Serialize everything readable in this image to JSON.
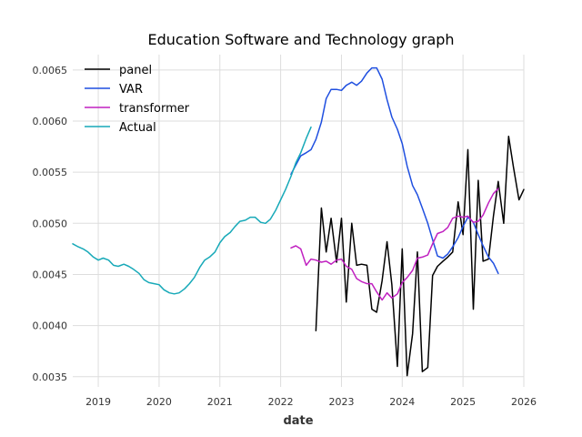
{
  "chart_data": {
    "type": "line",
    "title": "Education Software and Technology graph",
    "xlabel": "date",
    "ylabel": "",
    "x_tick_labels": [
      "2019",
      "2020",
      "2021",
      "2022",
      "2023",
      "2024",
      "2025",
      "2026"
    ],
    "y_tick_labels": [
      "0.0035",
      "0.0040",
      "0.0045",
      "0.0050",
      "0.0055",
      "0.0060",
      "0.0065"
    ],
    "xlim": [
      2018.58,
      2026.0
    ],
    "ylim": [
      0.0034,
      0.00665
    ],
    "grid": true,
    "legend_position": "top-left",
    "series": [
      {
        "name": "panel",
        "color": "#000000",
        "x": [
          2022.58,
          2022.67,
          2022.75,
          2022.83,
          2022.92,
          2023.0,
          2023.08,
          2023.17,
          2023.25,
          2023.33,
          2023.42,
          2023.5,
          2023.58,
          2023.67,
          2023.75,
          2023.83,
          2023.92,
          2024.0,
          2024.08,
          2024.17,
          2024.25,
          2024.33,
          2024.42,
          2024.5,
          2024.58,
          2024.67,
          2024.75,
          2024.83,
          2024.92,
          2025.0,
          2025.08,
          2025.17,
          2025.25,
          2025.33,
          2025.42,
          2025.5,
          2025.58,
          2025.67,
          2025.75,
          2025.83,
          2025.92,
          2026.0
        ],
        "values": [
          0.00395,
          0.00515,
          0.00472,
          0.00505,
          0.00462,
          0.00505,
          0.00423,
          0.005,
          0.00459,
          0.0046,
          0.00459,
          0.00416,
          0.00413,
          0.00444,
          0.00482,
          0.0044,
          0.0036,
          0.00475,
          0.00351,
          0.00392,
          0.00472,
          0.00355,
          0.00359,
          0.00449,
          0.00458,
          0.00463,
          0.00467,
          0.00472,
          0.00521,
          0.00489,
          0.00572,
          0.00416,
          0.00542,
          0.00463,
          0.00465,
          0.00507,
          0.00541,
          0.005,
          0.00585,
          0.00555,
          0.00523,
          0.00533
        ]
      },
      {
        "name": "VAR",
        "color": "#1f4fe0",
        "x": [
          2022.17,
          2022.25,
          2022.33,
          2022.42,
          2022.5,
          2022.58,
          2022.67,
          2022.75,
          2022.83,
          2022.92,
          2023.0,
          2023.08,
          2023.17,
          2023.25,
          2023.33,
          2023.42,
          2023.5,
          2023.58,
          2023.67,
          2023.75,
          2023.83,
          2023.92,
          2024.0,
          2024.08,
          2024.17,
          2024.25,
          2024.33,
          2024.42,
          2024.5,
          2024.58,
          2024.67,
          2024.75,
          2024.83,
          2024.92,
          2025.0,
          2025.08,
          2025.17,
          2025.25,
          2025.33,
          2025.42,
          2025.5,
          2025.58
        ],
        "values": [
          0.00548,
          0.00557,
          0.00566,
          0.00569,
          0.00572,
          0.00582,
          0.00599,
          0.00622,
          0.00631,
          0.00631,
          0.0063,
          0.00635,
          0.00638,
          0.00635,
          0.00639,
          0.00647,
          0.00652,
          0.00652,
          0.00641,
          0.00621,
          0.00604,
          0.00592,
          0.00578,
          0.00556,
          0.00537,
          0.00528,
          0.00515,
          0.005,
          0.00484,
          0.00468,
          0.00466,
          0.0047,
          0.00477,
          0.00486,
          0.00497,
          0.00506,
          0.00501,
          0.00489,
          0.00478,
          0.00467,
          0.00461,
          0.00451
        ]
      },
      {
        "name": "transformer",
        "color": "#c020c0",
        "x": [
          2022.17,
          2022.25,
          2022.33,
          2022.42,
          2022.5,
          2022.58,
          2022.67,
          2022.75,
          2022.83,
          2022.92,
          2023.0,
          2023.08,
          2023.17,
          2023.25,
          2023.33,
          2023.42,
          2023.5,
          2023.58,
          2023.67,
          2023.75,
          2023.83,
          2023.92,
          2024.0,
          2024.08,
          2024.17,
          2024.25,
          2024.33,
          2024.42,
          2024.5,
          2024.58,
          2024.67,
          2024.75,
          2024.83,
          2024.92,
          2025.0,
          2025.08,
          2025.17,
          2025.25,
          2025.33,
          2025.42,
          2025.5,
          2025.58
        ],
        "values": [
          0.00476,
          0.00478,
          0.00475,
          0.00459,
          0.00465,
          0.00464,
          0.00462,
          0.00463,
          0.0046,
          0.00464,
          0.00465,
          0.00458,
          0.00455,
          0.00446,
          0.00443,
          0.00441,
          0.00441,
          0.00433,
          0.00425,
          0.00432,
          0.00427,
          0.00431,
          0.00442,
          0.00447,
          0.00454,
          0.00466,
          0.00467,
          0.00469,
          0.0048,
          0.0049,
          0.00492,
          0.00496,
          0.00505,
          0.00507,
          0.00506,
          0.00507,
          0.00501,
          0.00502,
          0.00508,
          0.0052,
          0.00529,
          0.00534
        ]
      },
      {
        "name": "Actual",
        "color": "#17a9b8",
        "x": [
          2018.58,
          2018.67,
          2018.75,
          2018.83,
          2018.92,
          2019.0,
          2019.08,
          2019.17,
          2019.25,
          2019.33,
          2019.42,
          2019.5,
          2019.58,
          2019.67,
          2019.75,
          2019.83,
          2019.92,
          2020.0,
          2020.08,
          2020.17,
          2020.25,
          2020.33,
          2020.42,
          2020.5,
          2020.58,
          2020.67,
          2020.75,
          2020.83,
          2020.92,
          2021.0,
          2021.08,
          2021.17,
          2021.25,
          2021.33,
          2021.42,
          2021.5,
          2021.58,
          2021.67,
          2021.75,
          2021.83,
          2021.92,
          2022.0,
          2022.08,
          2022.17,
          2022.25,
          2022.33,
          2022.42,
          2022.5
        ],
        "values": [
          0.0048,
          0.00477,
          0.00475,
          0.00472,
          0.00467,
          0.00464,
          0.00466,
          0.00464,
          0.00459,
          0.00458,
          0.0046,
          0.00458,
          0.00455,
          0.00451,
          0.00445,
          0.00442,
          0.00441,
          0.0044,
          0.00435,
          0.00432,
          0.00431,
          0.00432,
          0.00436,
          0.00441,
          0.00447,
          0.00457,
          0.00464,
          0.00467,
          0.00472,
          0.00481,
          0.00487,
          0.00491,
          0.00497,
          0.00502,
          0.00503,
          0.00506,
          0.00506,
          0.00501,
          0.005,
          0.00504,
          0.00513,
          0.00523,
          0.00533,
          0.00546,
          0.00559,
          0.00569,
          0.00583,
          0.00594
        ]
      }
    ]
  }
}
